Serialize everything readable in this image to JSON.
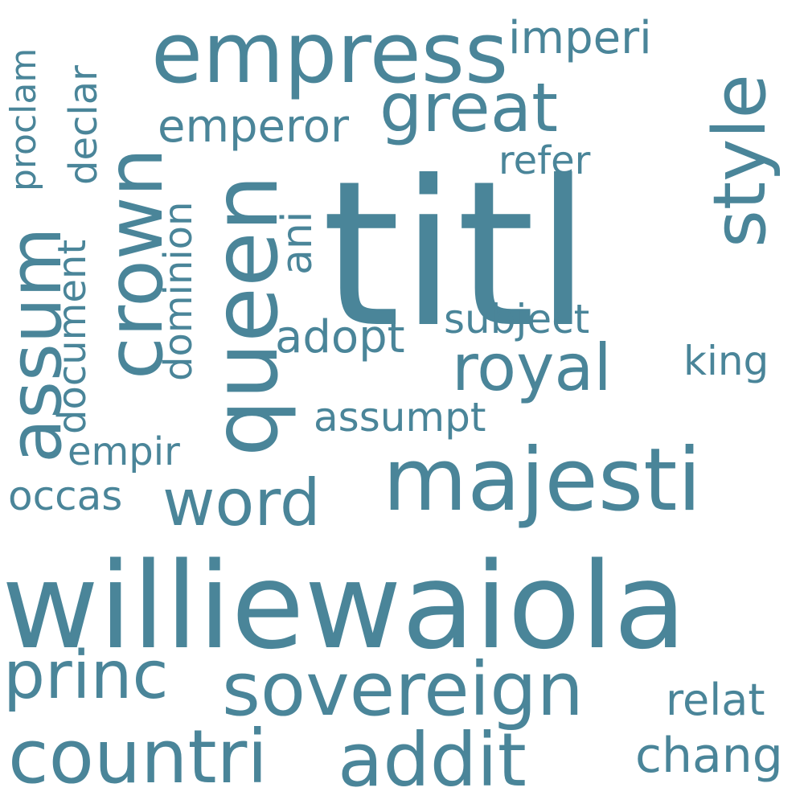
{
  "cloud": {
    "color": "#4a8599",
    "words": {
      "titl": "titl",
      "williewaiola": "williewaiola",
      "empress": "empress",
      "majesti": "majesti",
      "sovereign": "sovereign",
      "countri": "countri",
      "addit": "addit",
      "princ": "princ",
      "queen": "queen",
      "crown": "crown",
      "great": "great",
      "royal": "royal",
      "style": "style",
      "word": "word",
      "assum": "assum",
      "emperor": "emperor",
      "imperi": "imperi",
      "adopt": "adopt",
      "subject": "subject",
      "refer": "refer",
      "king": "king",
      "ani": "ani",
      "assumpt": "assumpt",
      "dominion": "dominion",
      "document": "document",
      "declar": "declar",
      "proclam": "proclam",
      "empir": "empir",
      "occas": "occas",
      "relat": "relat",
      "chang": "chang"
    }
  }
}
